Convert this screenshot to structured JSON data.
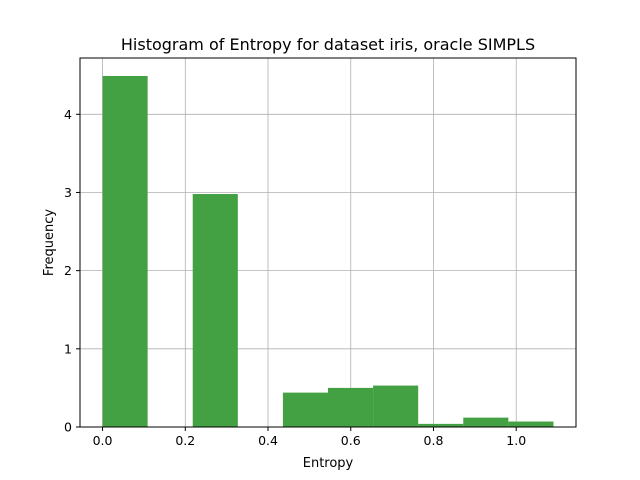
{
  "chart_data": {
    "type": "bar",
    "title": "Histogram of Entropy for dataset iris, oracle SIMPLS",
    "xlabel": "Entropy",
    "ylabel": "Frequency",
    "xlim": [
      -0.0545,
      1.1445
    ],
    "ylim": [
      0,
      4.72
    ],
    "grid": true,
    "bar_color": "#43a043",
    "xticks": [
      {
        "value": 0.0,
        "label": "0.0"
      },
      {
        "value": 0.2,
        "label": "0.2"
      },
      {
        "value": 0.4,
        "label": "0.4"
      },
      {
        "value": 0.6,
        "label": "0.6"
      },
      {
        "value": 0.8,
        "label": "0.8"
      },
      {
        "value": 1.0,
        "label": "1.0"
      }
    ],
    "yticks": [
      {
        "value": 0,
        "label": "0"
      },
      {
        "value": 1,
        "label": "1"
      },
      {
        "value": 2,
        "label": "2"
      },
      {
        "value": 3,
        "label": "3"
      },
      {
        "value": 4,
        "label": "4"
      }
    ],
    "bins": [
      {
        "x0": 0.0,
        "x1": 0.109,
        "value": 4.49
      },
      {
        "x0": 0.109,
        "x1": 0.218,
        "value": 0.0
      },
      {
        "x0": 0.218,
        "x1": 0.327,
        "value": 2.98
      },
      {
        "x0": 0.327,
        "x1": 0.436,
        "value": 0.0
      },
      {
        "x0": 0.436,
        "x1": 0.545,
        "value": 0.44
      },
      {
        "x0": 0.545,
        "x1": 0.654,
        "value": 0.5
      },
      {
        "x0": 0.654,
        "x1": 0.763,
        "value": 0.53
      },
      {
        "x0": 0.763,
        "x1": 0.872,
        "value": 0.04
      },
      {
        "x0": 0.872,
        "x1": 0.981,
        "value": 0.12
      },
      {
        "x0": 0.981,
        "x1": 1.09,
        "value": 0.07
      }
    ]
  }
}
